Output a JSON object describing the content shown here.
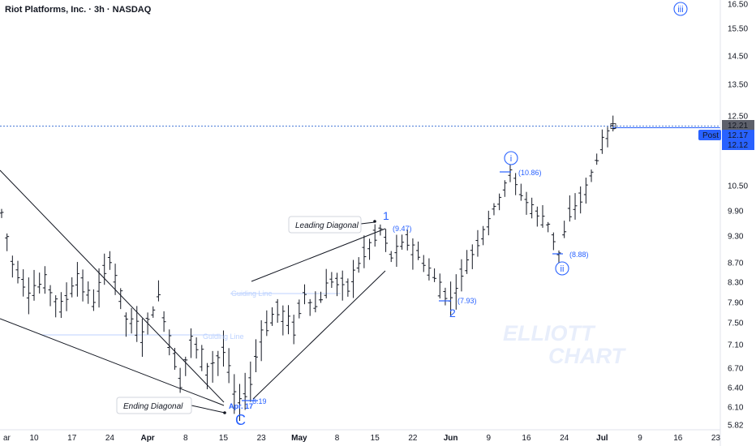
{
  "header": {
    "title": "Riot Platforms, Inc. · 3h · NASDAQ"
  },
  "chart_data": {
    "type": "ohlc",
    "ylim": [
      5.82,
      16.5
    ],
    "y_ticks": [
      "16.50",
      "15.50",
      "14.50",
      "13.50",
      "12.50",
      "10.50",
      "9.90",
      "9.30",
      "8.70",
      "8.30",
      "7.90",
      "7.50",
      "7.10",
      "6.70",
      "6.40",
      "6.10",
      "5.82"
    ],
    "x_ticks": [
      {
        "label": "ar",
        "idx": 0,
        "bold": false
      },
      {
        "label": "10",
        "idx": 6,
        "bold": false
      },
      {
        "label": "17",
        "idx": 13,
        "bold": false
      },
      {
        "label": "24",
        "idx": 20,
        "bold": false
      },
      {
        "label": "Apr",
        "idx": 27,
        "bold": true
      },
      {
        "label": "8",
        "idx": 34,
        "bold": false
      },
      {
        "label": "15",
        "idx": 41,
        "bold": false
      },
      {
        "label": "23",
        "idx": 48,
        "bold": false
      },
      {
        "label": "May",
        "idx": 55,
        "bold": true
      },
      {
        "label": "8",
        "idx": 62,
        "bold": false
      },
      {
        "label": "15",
        "idx": 69,
        "bold": false
      },
      {
        "label": "22",
        "idx": 76,
        "bold": false
      },
      {
        "label": "Jun",
        "idx": 83,
        "bold": true
      },
      {
        "label": "9",
        "idx": 90,
        "bold": false
      },
      {
        "label": "16",
        "idx": 97,
        "bold": false
      },
      {
        "label": "24",
        "idx": 104,
        "bold": false
      },
      {
        "label": "Jul",
        "idx": 111,
        "bold": true
      },
      {
        "label": "9",
        "idx": 118,
        "bold": false
      },
      {
        "label": "16",
        "idx": 125,
        "bold": false
      },
      {
        "label": "23",
        "idx": 132,
        "bold": false
      }
    ],
    "bar_count": 114,
    "anchors": [
      [
        0,
        9.85
      ],
      [
        2,
        8.7
      ],
      [
        5,
        8.1
      ],
      [
        8,
        8.3
      ],
      [
        11,
        7.8
      ],
      [
        14,
        8.4
      ],
      [
        17,
        7.9
      ],
      [
        20,
        8.8
      ],
      [
        23,
        7.6
      ],
      [
        26,
        7.3
      ],
      [
        29,
        8.0
      ],
      [
        31,
        7.2
      ],
      [
        33,
        6.5
      ],
      [
        35,
        7.2
      ],
      [
        38,
        6.7
      ],
      [
        41,
        7.0
      ],
      [
        43,
        6.3
      ],
      [
        44,
        6.15
      ],
      [
        46,
        6.5
      ],
      [
        48,
        7.3
      ],
      [
        51,
        7.75
      ],
      [
        54,
        7.4
      ],
      [
        56,
        8.1
      ],
      [
        58,
        7.8
      ],
      [
        61,
        8.35
      ],
      [
        64,
        8.2
      ],
      [
        67,
        8.9
      ],
      [
        70,
        9.47
      ],
      [
        72,
        8.85
      ],
      [
        75,
        9.2
      ],
      [
        78,
        8.7
      ],
      [
        81,
        8.2
      ],
      [
        83,
        7.95
      ],
      [
        86,
        8.7
      ],
      [
        89,
        9.4
      ],
      [
        92,
        10.2
      ],
      [
        94,
        10.86
      ],
      [
        96,
        10.3
      ],
      [
        99,
        9.8
      ],
      [
        101,
        9.6
      ],
      [
        103,
        8.9
      ],
      [
        105,
        9.8
      ],
      [
        108,
        10.4
      ],
      [
        111,
        11.7
      ],
      [
        113,
        12.18
      ]
    ],
    "current_price": "12.21",
    "post_label": "Post",
    "post_price": "12.17",
    "last_price": "12.12",
    "price_line_value": 12.21,
    "labels": {
      "v1_price": "(9.47)",
      "v1": "1",
      "v2_price": "(7.93)",
      "v2": "2",
      "vi_price": "(10.86)",
      "vi": "i",
      "vii_price": "(8.88)",
      "vii": "ii",
      "viii": "iii",
      "low_price": "6.19",
      "low_date": "Apr. 17",
      "vc": "C",
      "leading_diagonal": "Leading Diagonal",
      "ending_diagonal": "Ending Diagonal",
      "guiding_line": "Guiding Line",
      "wm1": "ELLIOTT",
      "wm2": "CHART"
    }
  },
  "colors": {
    "up": "#131722",
    "wave": "#2962ff",
    "line": "#131722",
    "price_tag": "#5d606b",
    "post_tag": "#2962ff",
    "guide": "#bcd2ff",
    "wm": "#e8eefb"
  }
}
